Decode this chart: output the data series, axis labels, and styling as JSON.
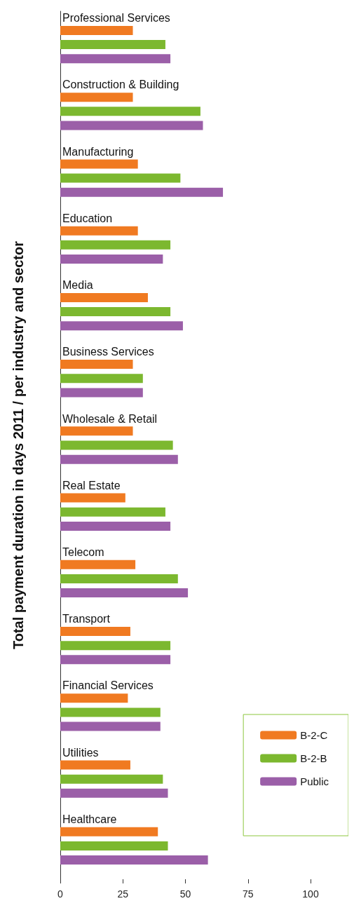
{
  "chart_data": {
    "type": "bar",
    "orientation": "horizontal",
    "ylabel": "Total payment duration in days 2011 / per industry and sector",
    "categories": [
      "Professional Services",
      "Construction & Building",
      "Manufacturing",
      "Education",
      "Media",
      "Business Services",
      "Wholesale & Retail",
      "Real Estate",
      "Telecom",
      "Transport",
      "Financial Services",
      "Utilities",
      "Healthcare"
    ],
    "series": [
      {
        "name": "B-2-C",
        "color": "#f07a21",
        "values": [
          29,
          29,
          31,
          31,
          35,
          29,
          29,
          26,
          30,
          28,
          27,
          28,
          39
        ]
      },
      {
        "name": "B-2-B",
        "color": "#7cb82f",
        "values": [
          42,
          56,
          48,
          44,
          44,
          33,
          45,
          42,
          47,
          44,
          40,
          41,
          43
        ]
      },
      {
        "name": "Public",
        "color": "#9b5fa8",
        "values": [
          44,
          57,
          65,
          41,
          49,
          33,
          47,
          44,
          51,
          44,
          40,
          43,
          59
        ]
      }
    ],
    "xlim": [
      0,
      100
    ],
    "xticks": [
      0,
      25,
      50,
      75,
      100
    ],
    "grid": false,
    "legend": "bottom right"
  }
}
